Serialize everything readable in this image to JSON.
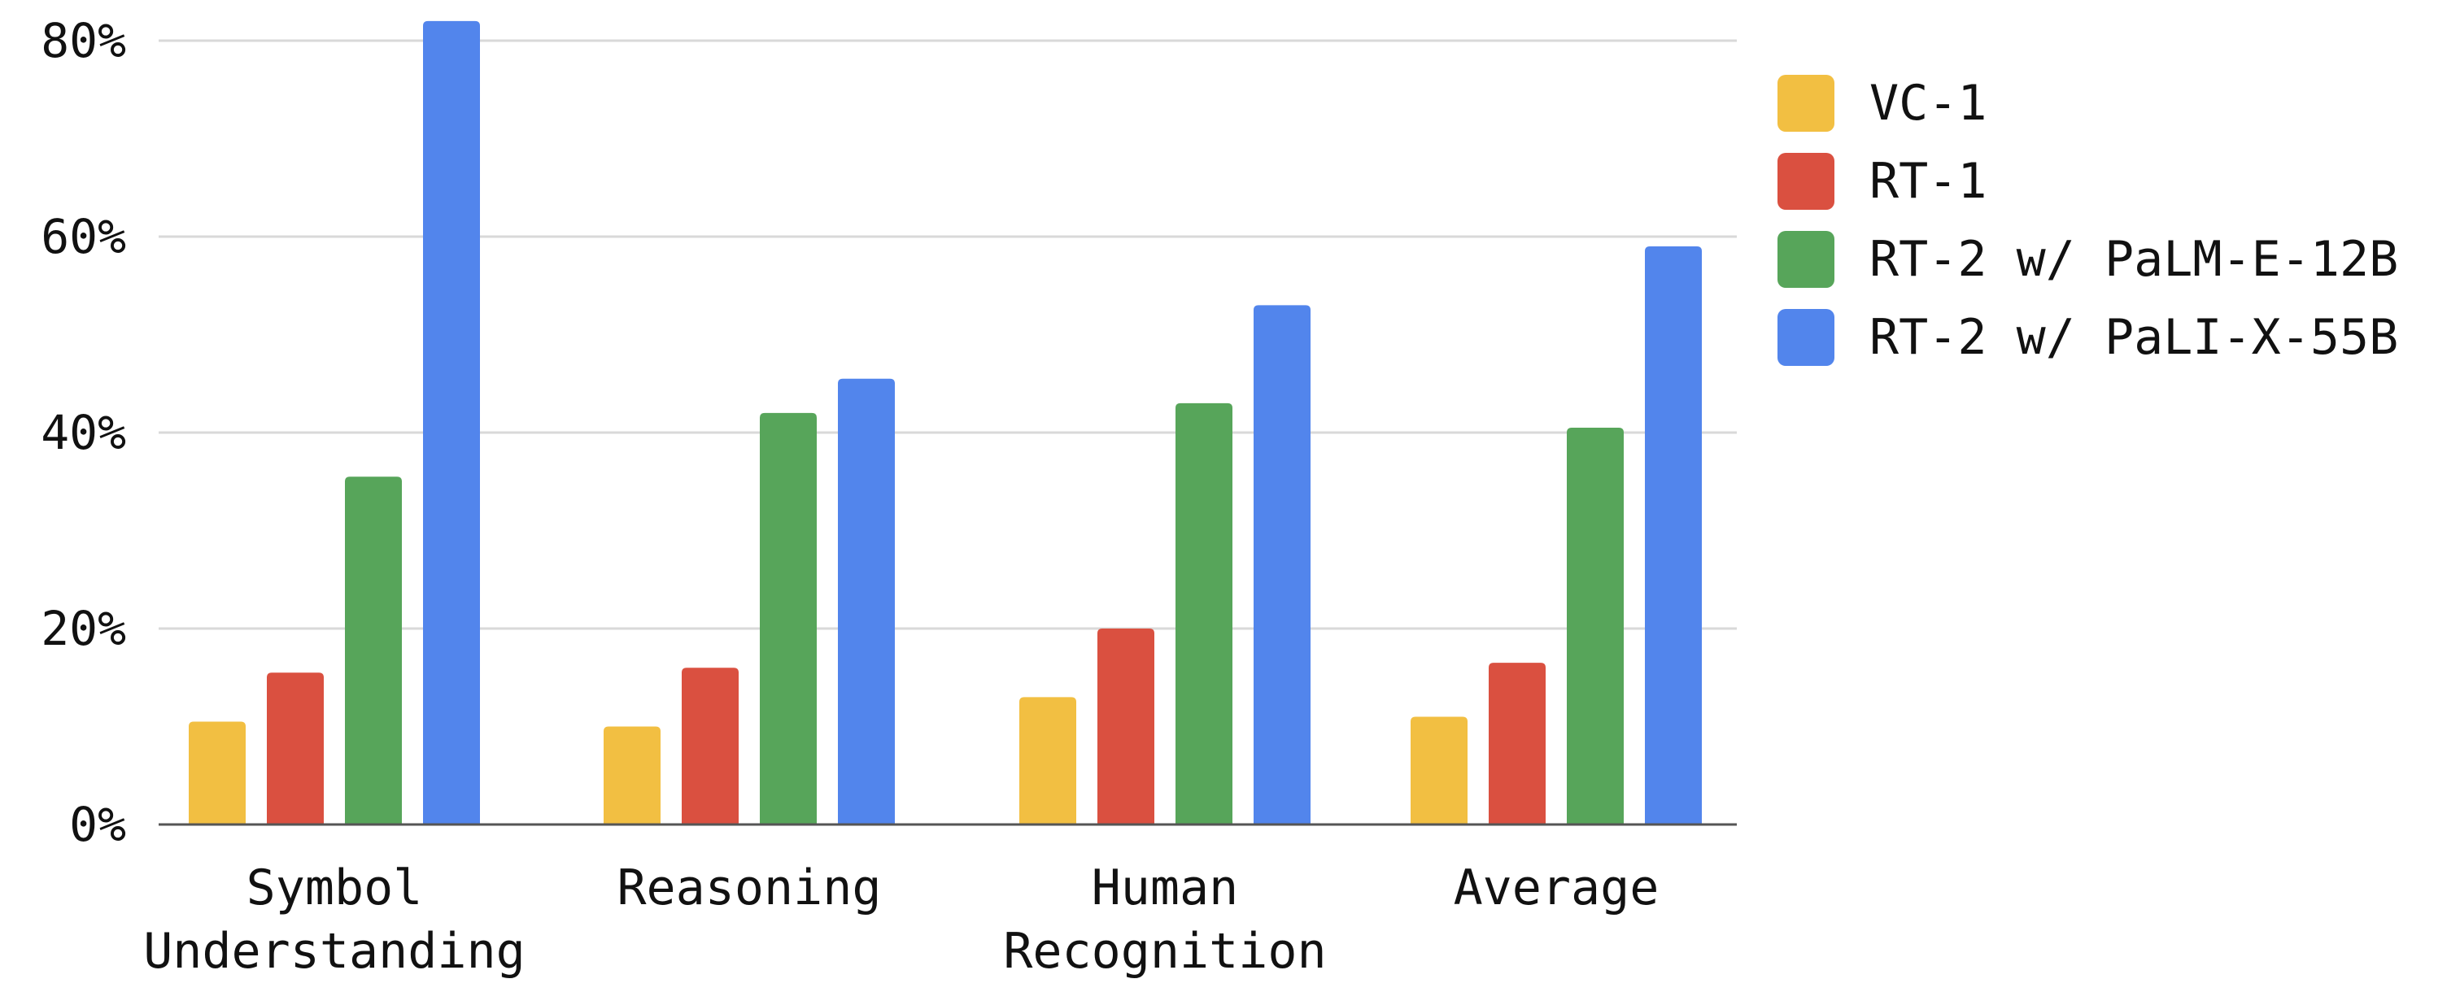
{
  "chart_data": {
    "type": "bar",
    "categories": [
      [
        "Symbol",
        "Understanding"
      ],
      [
        "Reasoning"
      ],
      [
        "Human",
        "Recognition"
      ],
      [
        "Average"
      ]
    ],
    "series": [
      {
        "name": "VC-1",
        "color": "#F2BF42",
        "values": [
          10.5,
          10,
          13,
          11
        ]
      },
      {
        "name": "RT-1",
        "color": "#DA5040",
        "values": [
          15.5,
          16,
          20,
          16.5
        ]
      },
      {
        "name": "RT-2 w/ PaLM-E-12B",
        "color": "#57A55A",
        "values": [
          35.5,
          42,
          43,
          40.5
        ]
      },
      {
        "name": "RT-2 w/ PaLI-X-55B",
        "color": "#5285EC",
        "values": [
          82,
          45.5,
          53,
          59
        ]
      }
    ],
    "ylim": [
      0,
      80
    ],
    "yticks": [
      "0%",
      "20%",
      "40%",
      "60%",
      "80%"
    ],
    "ytick_values": [
      0,
      20,
      40,
      60,
      80
    ],
    "grid": true,
    "legend": "right"
  }
}
